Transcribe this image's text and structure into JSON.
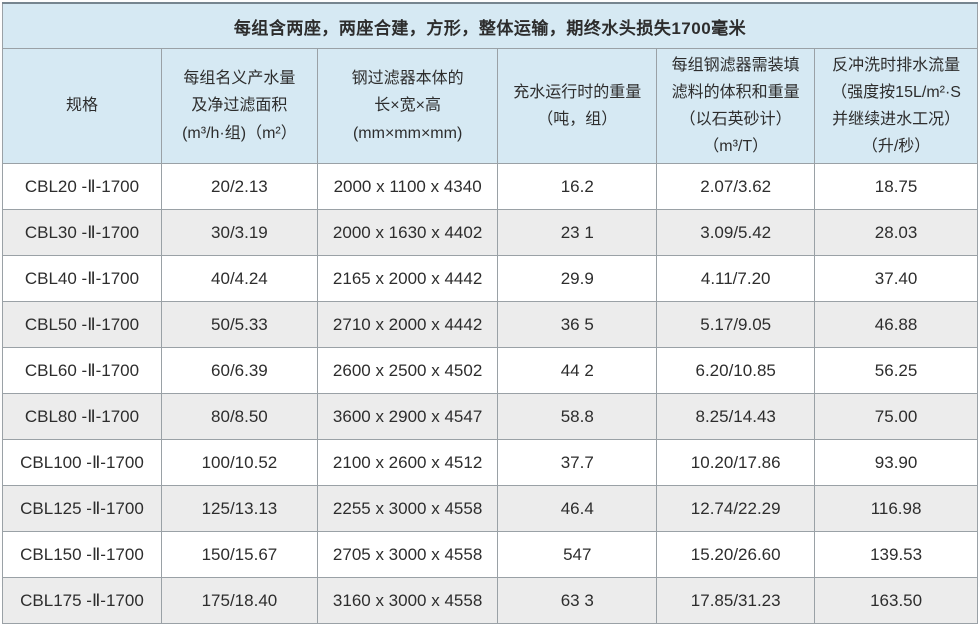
{
  "table": {
    "title": "每组含两座，两座合建，方形，整体运输，期终水头损失1700毫米",
    "columns": [
      "规格",
      "每组名义产水量\n及净过滤面积\n(m³/h·组)（m²）",
      "钢过滤器本体的\n长×宽×高\n(mm×mm×mm)",
      "充水运行时的重量\n（吨，组）",
      "每组钢滤器需装填\n滤料的体积和重量\n（以石英砂计）\n（m³/T）",
      "反冲洗时排水流量\n（强度按15L/m²·S\n并继续进水工况）\n（升/秒）"
    ],
    "rows": [
      [
        "CBL20 -Ⅱ-1700",
        "20/2.13",
        "2000 x 1100 x 4340",
        "16.2",
        "2.07/3.62",
        "18.75"
      ],
      [
        "CBL30 -Ⅱ-1700",
        "30/3.19",
        "2000 x 1630 x 4402",
        "23 1",
        "3.09/5.42",
        "28.03"
      ],
      [
        "CBL40 -Ⅱ-1700",
        "40/4.24",
        "2165 x 2000 x 4442",
        "29.9",
        "4.11/7.20",
        "37.40"
      ],
      [
        "CBL50 -Ⅱ-1700",
        "50/5.33",
        "2710 x 2000 x 4442",
        "36 5",
        "5.17/9.05",
        "46.88"
      ],
      [
        "CBL60 -Ⅱ-1700",
        "60/6.39",
        "2600 x 2500 x 4502",
        "44 2",
        "6.20/10.85",
        "56.25"
      ],
      [
        "CBL80 -Ⅱ-1700",
        "80/8.50",
        "3600 x 2900 x 4547",
        "58.8",
        "8.25/14.43",
        "75.00"
      ],
      [
        "CBL100 -Ⅱ-1700",
        "100/10.52",
        "2100 x 2600 x 4512",
        "37.7",
        "10.20/17.86",
        "93.90"
      ],
      [
        "CBL125 -Ⅱ-1700",
        "125/13.13",
        "2255 x 3000 x 4558",
        "46.4",
        "12.74/22.29",
        "116.98"
      ],
      [
        "CBL150 -Ⅱ-1700",
        "150/15.67",
        "2705 x 3000 x 4558",
        "547",
        "15.20/26.60",
        "139.53"
      ],
      [
        "CBL175 -Ⅱ-1700",
        "175/18.40",
        "3160 x 3000 x 4558",
        "63 3",
        "17.85/31.23",
        "163.50"
      ]
    ],
    "colors": {
      "header_bg": "#d6e9f3",
      "alt_row_bg": "#ececec",
      "border": "#9aa1a6",
      "text": "#2d2d2d"
    }
  }
}
